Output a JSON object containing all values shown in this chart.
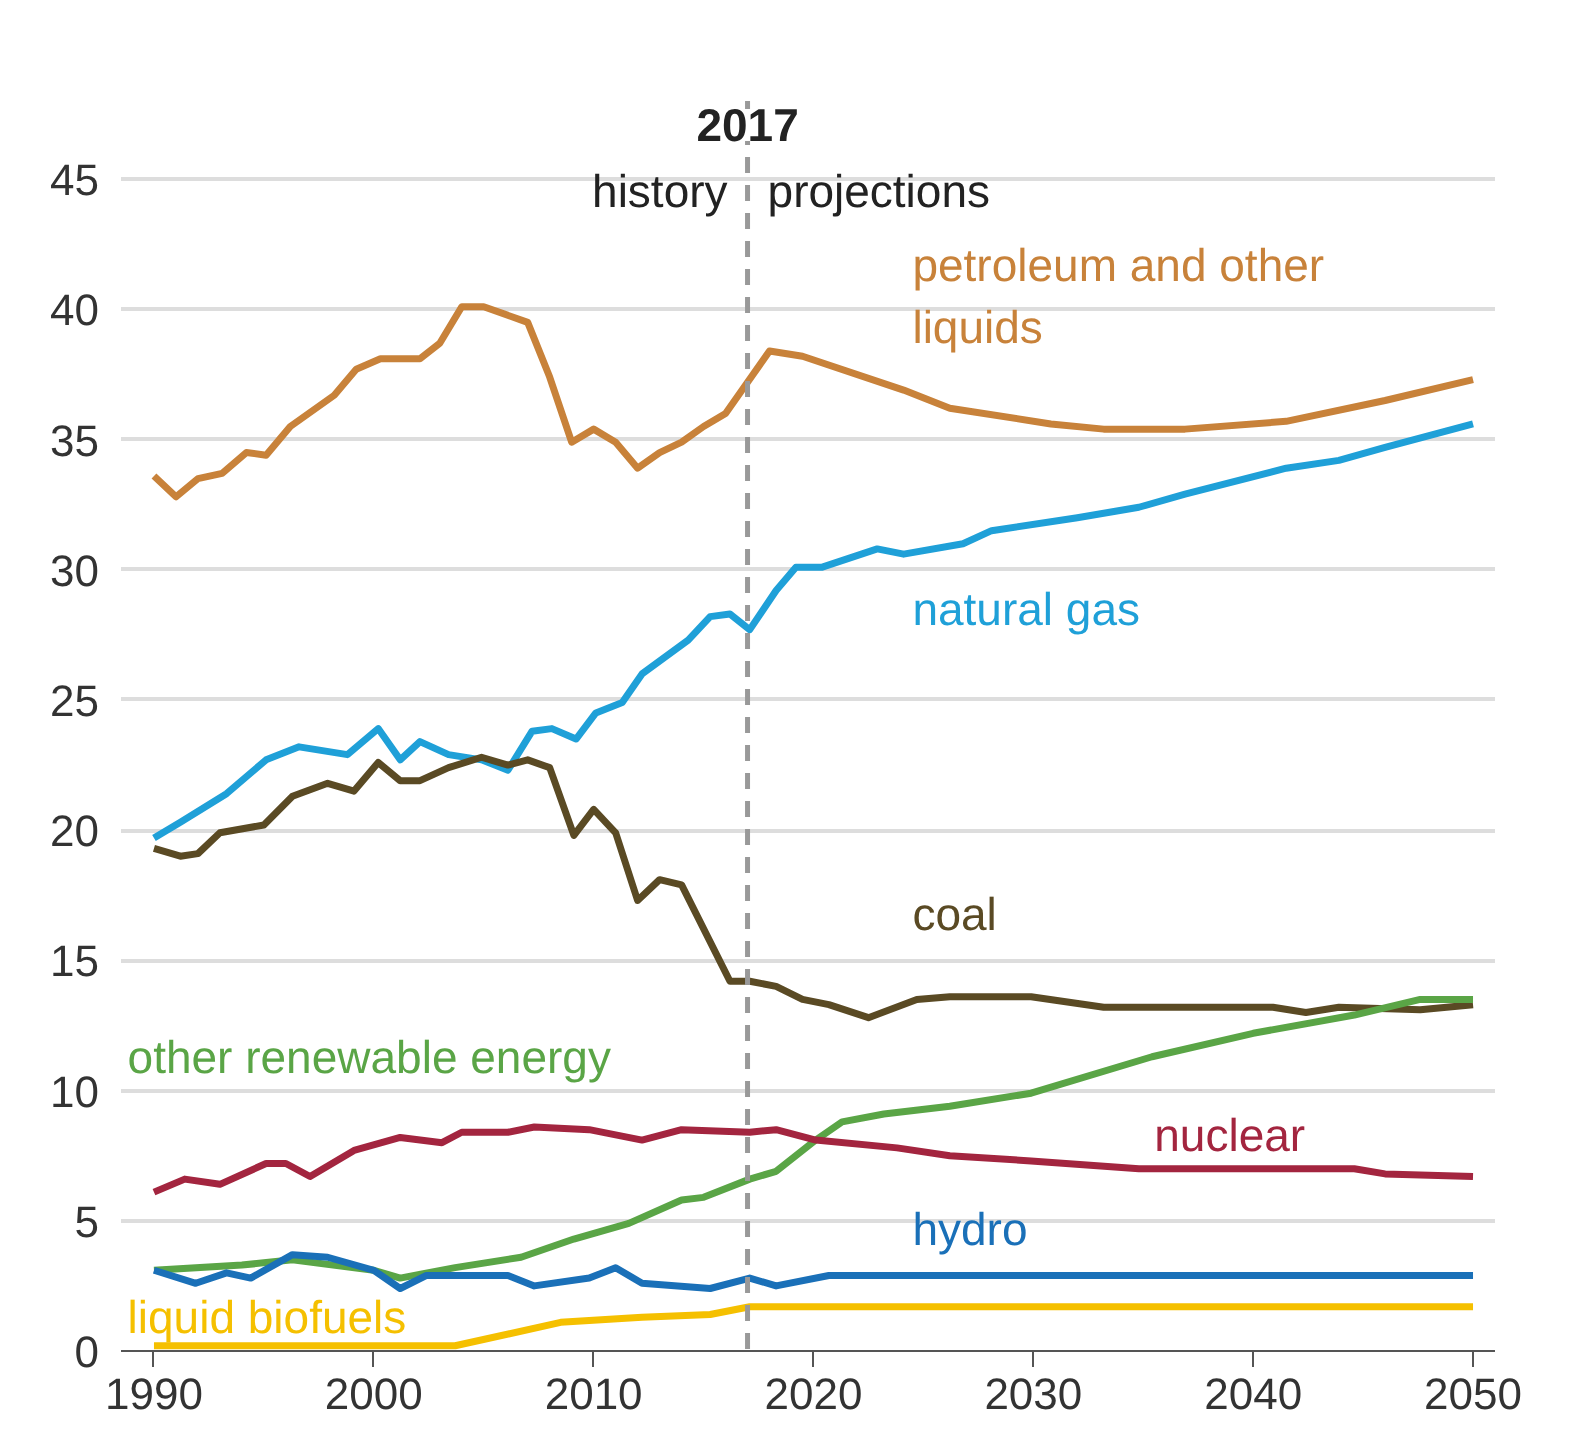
{
  "chart_data": {
    "type": "line",
    "xlim": [
      1988.5,
      2051
    ],
    "ylim": [
      0,
      48
    ],
    "xticks": [
      1990,
      2000,
      2010,
      2020,
      2030,
      2040,
      2050
    ],
    "yticks": [
      0,
      5,
      10,
      15,
      20,
      25,
      30,
      35,
      40,
      45
    ],
    "grid": "y",
    "line_style": "solid",
    "marker": "none",
    "ref_lines": [
      {
        "axis": "x",
        "value": 2017,
        "label": "2017",
        "color": "#999999",
        "line_style": "dashed"
      }
    ],
    "annotations": [
      "history",
      "projections"
    ],
    "series": [
      {
        "name": "petroleum and other liquids",
        "color": "#c8823a",
        "x": [
          1990,
          1991,
          1992,
          1993.1,
          1994.2,
          1995.1,
          1996.2,
          1998.2,
          1999.2,
          2000.3,
          2002.1,
          2003,
          2004,
          2005,
          2007,
          2008,
          2009,
          2010,
          2011,
          2012,
          2013,
          2014,
          2015,
          2016,
          2017,
          2018,
          2019.5,
          2024.1,
          2026.2,
          2030.8,
          2033.2,
          2036.9,
          2041.5,
          2046,
          2050
        ],
        "values": [
          33.6,
          32.8,
          33.5,
          33.7,
          34.5,
          34.4,
          35.5,
          36.7,
          37.7,
          38.1,
          38.1,
          38.7,
          40.1,
          40.1,
          39.5,
          37.4,
          34.9,
          35.4,
          34.9,
          33.9,
          34.5,
          34.9,
          35.5,
          36,
          37.2,
          38.4,
          38.2,
          36.9,
          36.2,
          35.6,
          35.4,
          35.4,
          35.7,
          36.5,
          37.3
        ]
      },
      {
        "name": "natural gas",
        "color": "#1fa0d8",
        "x": [
          1990,
          1991.2,
          1993.3,
          1995.1,
          1996.6,
          1998.8,
          2000.2,
          2001.2,
          2002.1,
          2003.4,
          2004.9,
          2006.1,
          2007.2,
          2008.1,
          2009.2,
          2010.1,
          2011.3,
          2012.2,
          2014.3,
          2015.3,
          2016.2,
          2017.1,
          2018.3,
          2019.2,
          2020.4,
          2022.9,
          2024.1,
          2026.8,
          2028.1,
          2032,
          2034.8,
          2036.9,
          2041.5,
          2043.9,
          2046,
          2050
        ],
        "values": [
          19.7,
          20.3,
          21.4,
          22.7,
          23.2,
          22.9,
          23.9,
          22.7,
          23.4,
          22.9,
          22.7,
          22.3,
          23.8,
          23.9,
          23.5,
          24.5,
          24.9,
          26,
          27.3,
          28.2,
          28.3,
          27.7,
          29.2,
          30.1,
          30.1,
          30.8,
          30.6,
          31,
          31.5,
          32,
          32.4,
          32.9,
          33.9,
          34.2,
          34.7,
          35.6
        ]
      },
      {
        "name": "coal",
        "color": "#5a4a24",
        "x": [
          1990,
          1991.2,
          1992,
          1993,
          1995,
          1996.3,
          1997.9,
          1999.1,
          2000.2,
          2001.2,
          2002.1,
          2003.4,
          2004.9,
          2006.1,
          2007,
          2008,
          2009.1,
          2010,
          2011,
          2012,
          2013,
          2014,
          2016.2,
          2017.1,
          2018.3,
          2019.5,
          2020.7,
          2022.5,
          2024.7,
          2026.2,
          2029.9,
          2033.2,
          2040.9,
          2042.4,
          2043.9,
          2047.6,
          2050
        ],
        "values": [
          19.3,
          19,
          19.1,
          19.9,
          20.2,
          21.3,
          21.8,
          21.5,
          22.6,
          21.9,
          21.9,
          22.4,
          22.8,
          22.5,
          22.7,
          22.4,
          19.8,
          20.8,
          19.9,
          17.3,
          18.1,
          17.9,
          14.2,
          14.2,
          14,
          13.5,
          13.3,
          12.8,
          13.5,
          13.6,
          13.6,
          13.2,
          13.2,
          13,
          13.2,
          13.1,
          13.3
        ]
      },
      {
        "name": "other renewable energy",
        "color": "#5aa546",
        "x": [
          1990,
          1994,
          1996.3,
          2000,
          2001.2,
          2003.7,
          2006.7,
          2009.1,
          2011.6,
          2014,
          2015,
          2017.1,
          2018.3,
          2020.1,
          2021.3,
          2023.2,
          2026.2,
          2029.9,
          2035.4,
          2040,
          2044.6,
          2047.6,
          2050
        ],
        "values": [
          3.1,
          3.3,
          3.5,
          3.1,
          2.8,
          3.2,
          3.6,
          4.3,
          4.9,
          5.8,
          5.9,
          6.6,
          6.9,
          8.1,
          8.8,
          9.1,
          9.4,
          9.9,
          11.3,
          12.2,
          12.9,
          13.5,
          13.5
        ]
      },
      {
        "name": "nuclear",
        "color": "#a3253f",
        "x": [
          1990,
          1991.4,
          1993,
          1995.1,
          1996,
          1997.1,
          1999.1,
          2001.2,
          2003.1,
          2004,
          2006.1,
          2007.3,
          2009.8,
          2012.2,
          2014,
          2017.1,
          2018.3,
          2020.1,
          2023.8,
          2026.2,
          2029.9,
          2034.8,
          2044.6,
          2046,
          2050
        ],
        "values": [
          6.1,
          6.6,
          6.4,
          7.2,
          7.2,
          6.7,
          7.7,
          8.2,
          8,
          8.4,
          8.4,
          8.6,
          8.5,
          8.1,
          8.5,
          8.4,
          8.5,
          8.1,
          7.8,
          7.5,
          7.3,
          7,
          7,
          6.8,
          6.7
        ]
      },
      {
        "name": "hydro",
        "color": "#1a70b8",
        "x": [
          1990,
          1991.9,
          1993.3,
          1994.4,
          1996.3,
          1997.9,
          2000,
          2001.2,
          2002.4,
          2006.1,
          2007.3,
          2009.8,
          2011,
          2012.2,
          2015.3,
          2017.1,
          2018.3,
          2020.7,
          2050
        ],
        "values": [
          3.1,
          2.6,
          3,
          2.8,
          3.7,
          3.6,
          3.1,
          2.4,
          2.9,
          2.9,
          2.5,
          2.8,
          3.2,
          2.6,
          2.4,
          2.8,
          2.5,
          2.9,
          2.9
        ]
      },
      {
        "name": "liquid biofuels",
        "color": "#f5c000",
        "x": [
          1990,
          2003.7,
          2008.5,
          2012.2,
          2015.3,
          2017.1,
          2050
        ],
        "values": [
          0.2,
          0.2,
          1.1,
          1.3,
          1.4,
          1.7,
          1.7
        ]
      }
    ]
  }
}
